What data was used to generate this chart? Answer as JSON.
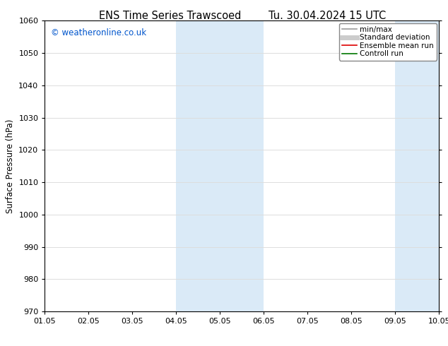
{
  "title_left": "ENS Time Series Trawscoed",
  "title_right": "Tu. 30.04.2024 15 UTC",
  "ylabel": "Surface Pressure (hPa)",
  "ylim": [
    970,
    1060
  ],
  "yticks": [
    970,
    980,
    990,
    1000,
    1010,
    1020,
    1030,
    1040,
    1050,
    1060
  ],
  "xlim": [
    0,
    9
  ],
  "xtick_labels": [
    "01.05",
    "02.05",
    "03.05",
    "04.05",
    "05.05",
    "06.05",
    "07.05",
    "08.05",
    "09.05",
    "10.05"
  ],
  "xtick_positions": [
    0,
    1,
    2,
    3,
    4,
    5,
    6,
    7,
    8,
    9
  ],
  "shaded_regions": [
    {
      "xmin": 3,
      "xmax": 5,
      "color": "#daeaf7"
    },
    {
      "xmin": 8,
      "xmax": 9,
      "color": "#daeaf7"
    }
  ],
  "watermark": "© weatheronline.co.uk",
  "watermark_color": "#0055cc",
  "legend_items": [
    {
      "label": "min/max",
      "color": "#999999",
      "lw": 1.2,
      "style": "solid"
    },
    {
      "label": "Standard deviation",
      "color": "#cccccc",
      "lw": 5,
      "style": "solid"
    },
    {
      "label": "Ensemble mean run",
      "color": "#dd0000",
      "lw": 1.2,
      "style": "solid"
    },
    {
      "label": "Controll run",
      "color": "#007700",
      "lw": 1.2,
      "style": "solid"
    }
  ],
  "background_color": "#ffffff",
  "grid_color": "#dddddd",
  "title_fontsize": 10.5,
  "tick_fontsize": 8,
  "ylabel_fontsize": 8.5,
  "watermark_fontsize": 8.5
}
